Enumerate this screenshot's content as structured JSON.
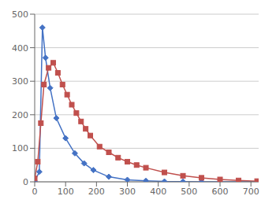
{
  "chart_data": {
    "type": "line",
    "series": [
      {
        "color": "#4472c4",
        "marker": "diamond",
        "x": [
          0,
          15,
          25,
          35,
          50,
          70,
          100,
          130,
          160,
          190,
          240,
          300,
          360,
          420,
          480,
          540,
          600,
          660,
          720
        ],
        "values": [
          2,
          30,
          460,
          370,
          280,
          190,
          130,
          85,
          55,
          35,
          15,
          6,
          3,
          1,
          0.5,
          0,
          0,
          0,
          0
        ]
      },
      {
        "color": "#c0504d",
        "marker": "square",
        "x": [
          0,
          10,
          20,
          30,
          45,
          60,
          75,
          90,
          105,
          120,
          135,
          150,
          165,
          180,
          210,
          240,
          270,
          300,
          330,
          360,
          420,
          480,
          540,
          600,
          660,
          720
        ],
        "values": [
          10,
          60,
          175,
          290,
          340,
          355,
          325,
          290,
          260,
          230,
          205,
          180,
          158,
          138,
          105,
          88,
          72,
          60,
          50,
          42,
          28,
          18,
          12,
          7,
          4,
          2
        ]
      }
    ],
    "xlim": [
      0,
      725
    ],
    "ylim": [
      0,
      500
    ],
    "xticks": [
      0,
      100,
      200,
      300,
      400,
      500,
      600,
      700
    ],
    "yticks": [
      0,
      100,
      200,
      300,
      400,
      500
    ],
    "grid": "y"
  }
}
